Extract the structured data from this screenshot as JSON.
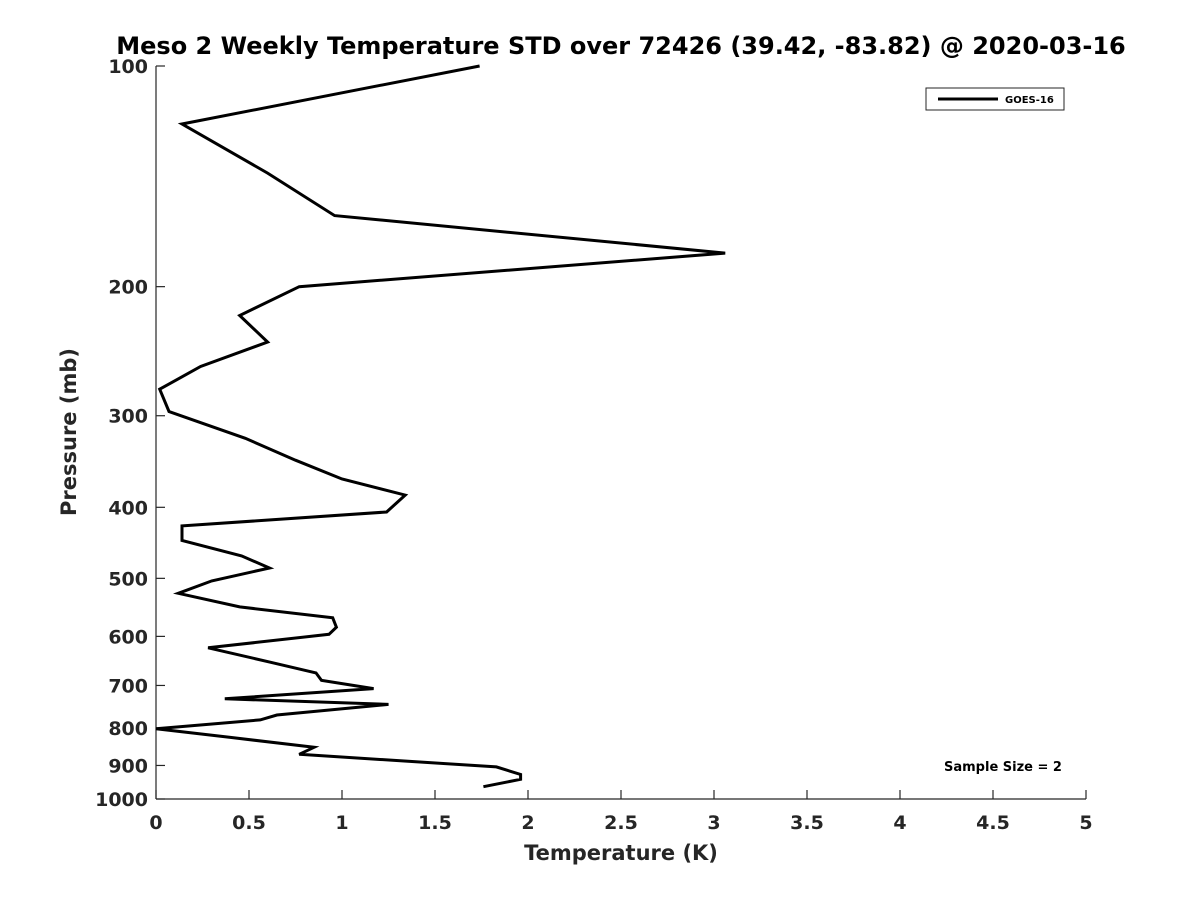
{
  "chart_data": {
    "type": "line",
    "title": "Meso 2 Weekly Temperature STD over 72426 (39.42, -83.82) @ 2020-03-16",
    "xlabel": "Temperature (K)",
    "ylabel": "Pressure (mb)",
    "xlim": [
      0,
      5
    ],
    "ylim": [
      100,
      1000
    ],
    "y_scale": "log",
    "y_reversed": true,
    "grid": false,
    "legend_position": "top-right",
    "x_ticks": [
      0,
      0.5,
      1,
      1.5,
      2,
      2.5,
      3,
      3.5,
      4,
      4.5,
      5
    ],
    "x_tick_labels": [
      "0",
      "0.5",
      "1",
      "1.5",
      "2",
      "2.5",
      "3",
      "3.5",
      "4",
      "4.5",
      "5"
    ],
    "y_ticks": [
      100,
      200,
      300,
      400,
      500,
      600,
      700,
      800,
      900,
      1000
    ],
    "y_tick_labels": [
      "100",
      "200",
      "300",
      "400",
      "500",
      "600",
      "700",
      "800",
      "900",
      "1000"
    ],
    "series": [
      {
        "name": "GOES-16",
        "color": "#000000",
        "x": [
          1.74,
          0.14,
          0.6,
          0.96,
          3.06,
          0.77,
          0.45,
          0.6,
          0.24,
          0.02,
          0.07,
          0.48,
          0.75,
          1.0,
          1.34,
          1.24,
          0.14,
          0.14,
          0.46,
          0.61,
          0.3,
          0.12,
          0.45,
          0.95,
          0.97,
          0.93,
          0.28,
          0.62,
          0.86,
          0.89,
          1.17,
          0.37,
          1.25,
          0.65,
          0.56,
          0.0,
          0.4,
          0.85,
          0.77,
          1.83,
          1.96,
          1.96,
          1.76
        ],
        "y": [
          100,
          120,
          140,
          160,
          180,
          200,
          219,
          238,
          257,
          276,
          296,
          322,
          345,
          366,
          385,
          406,
          424,
          444,
          466,
          484,
          504,
          524,
          547,
          566,
          583,
          596,
          622,
          651,
          673,
          689,
          707,
          730,
          743,
          768,
          780,
          802,
          824,
          850,
          869,
          904,
          926,
          940,
          962
        ]
      }
    ],
    "annotations": [
      "Sample Size = 2"
    ]
  }
}
